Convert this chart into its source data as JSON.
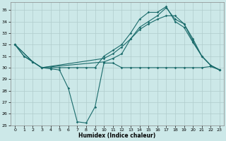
{
  "xlabel": "Humidex (Indice chaleur)",
  "background_color": "#cce8e8",
  "grid_color": "#b0cccc",
  "line_color": "#1a6b6b",
  "xlim": [
    -0.5,
    23.5
  ],
  "ylim": [
    25,
    35.7
  ],
  "yticks": [
    25,
    26,
    27,
    28,
    29,
    30,
    31,
    32,
    33,
    34,
    35
  ],
  "xticks": [
    0,
    1,
    2,
    3,
    4,
    5,
    6,
    7,
    8,
    9,
    10,
    11,
    12,
    13,
    14,
    15,
    16,
    17,
    18,
    19,
    20,
    21,
    22,
    23
  ],
  "line1_x": [
    0,
    1,
    2,
    3,
    4,
    5,
    6,
    7,
    8,
    9,
    10,
    11,
    12,
    13,
    14,
    15,
    16,
    17,
    18,
    19,
    20,
    21,
    22,
    23
  ],
  "line1_y": [
    32,
    31,
    30.5,
    30.0,
    29.9,
    29.8,
    28.2,
    25.3,
    25.2,
    26.6,
    30.4,
    30.4,
    30.0,
    30.0,
    30.0,
    30.0,
    30.0,
    30.0,
    30.0,
    30.0,
    30.0,
    30.0,
    30.1,
    29.8
  ],
  "line2_x": [
    0,
    2,
    3,
    10,
    11,
    12,
    13,
    14,
    15,
    16,
    17,
    18,
    19,
    20,
    21,
    22,
    23
  ],
  "line2_y": [
    32,
    30.5,
    30.0,
    30.5,
    30.8,
    31.2,
    32.5,
    33.5,
    34.0,
    34.5,
    35.2,
    34.2,
    33.8,
    32.3,
    31.0,
    30.2,
    29.8
  ],
  "line3_x": [
    0,
    1,
    2,
    3,
    4,
    5,
    6,
    7,
    8,
    9,
    10,
    11,
    12,
    13,
    14,
    15,
    16,
    17,
    18,
    19,
    20,
    21,
    22,
    23
  ],
  "line3_y": [
    32,
    31,
    30.5,
    30.0,
    30.0,
    30.0,
    30.0,
    30.0,
    30.0,
    30.0,
    31.0,
    31.5,
    32.0,
    33.0,
    34.2,
    34.8,
    34.8,
    35.3,
    34.0,
    33.5,
    32.2,
    31.0,
    30.2,
    29.8
  ],
  "line4_x": [
    0,
    2,
    3,
    10,
    11,
    12,
    13,
    14,
    15,
    16,
    17,
    18,
    19,
    20,
    21,
    22,
    23
  ],
  "line4_y": [
    32,
    30.5,
    30.0,
    30.8,
    31.2,
    31.8,
    32.5,
    33.3,
    33.8,
    34.2,
    34.5,
    34.5,
    33.8,
    32.5,
    31.0,
    30.2,
    29.8
  ]
}
